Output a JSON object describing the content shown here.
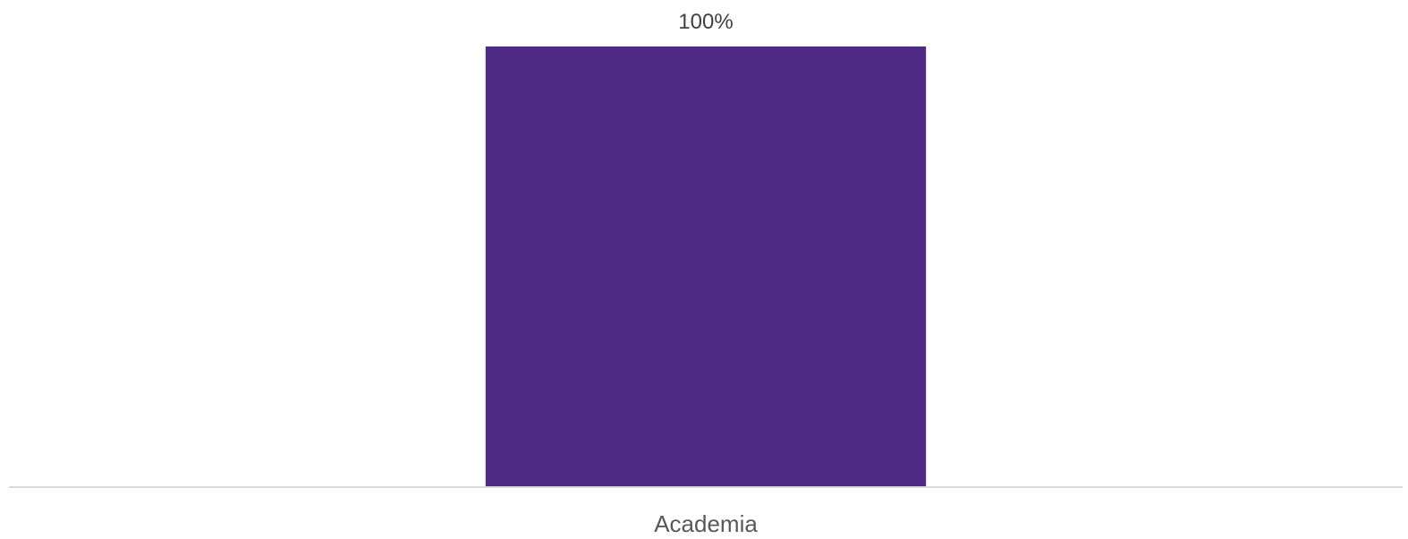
{
  "chart_data": {
    "type": "bar",
    "categories": [
      "Academia"
    ],
    "values": [
      100
    ],
    "value_labels": [
      "100%"
    ],
    "ylim": [
      0,
      100
    ],
    "grid": false,
    "legend": "none",
    "colors": {
      "bar": "#4e2a84",
      "axis_line": "#d9d9d9",
      "label_text": "#404040",
      "category_text": "#595959"
    }
  }
}
